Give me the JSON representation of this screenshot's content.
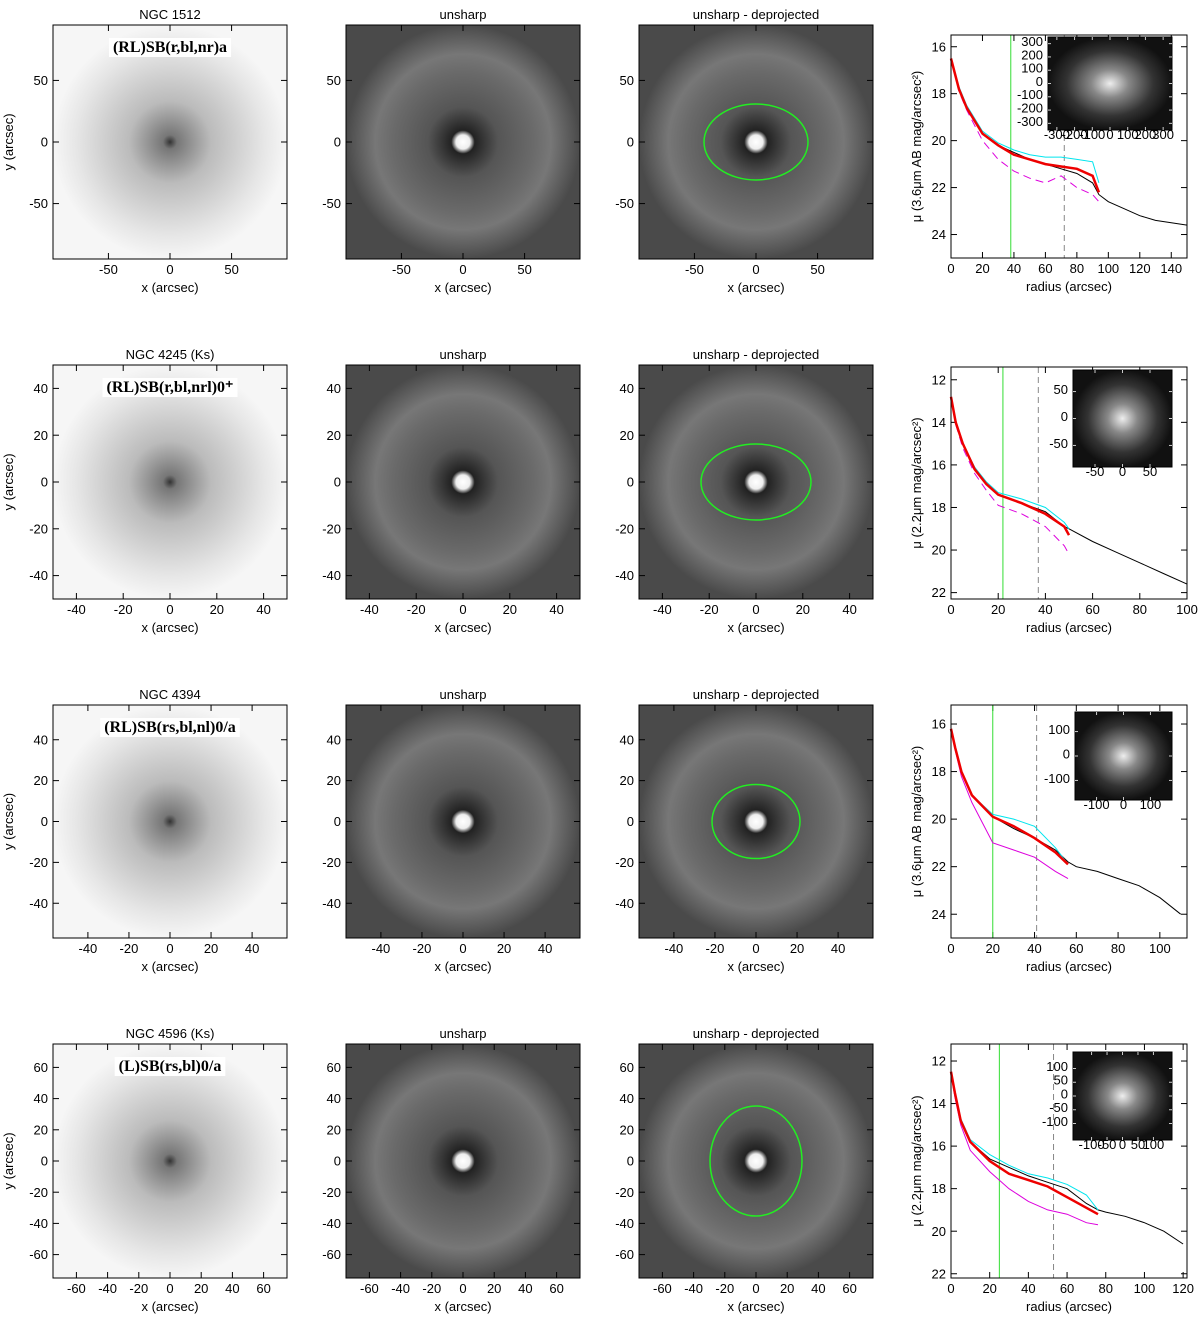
{
  "chart_data": [
    {
      "type": "image",
      "title": "NGC 1512",
      "annotation": "(RL)SB(r,bl,nr)a",
      "xlabel": "x (arcsec)",
      "ylabel": "y (arcsec)",
      "xlim": [
        -95,
        95
      ],
      "ylim": [
        -95,
        95
      ],
      "xticks": [
        -50,
        0,
        50
      ],
      "yticks": [
        -50,
        0,
        50
      ],
      "style": "inverted"
    },
    {
      "type": "image",
      "title": "unsharp",
      "xlabel": "x (arcsec)",
      "xlim": [
        -95,
        95
      ],
      "ylim": [
        -95,
        95
      ],
      "xticks": [
        -50,
        0,
        50
      ],
      "yticks": [
        -50,
        0,
        50
      ],
      "style": "unsharp"
    },
    {
      "type": "image",
      "title": "unsharp - deprojected",
      "xlabel": "x (arcsec)",
      "xlim": [
        -95,
        95
      ],
      "ylim": [
        -95,
        95
      ],
      "xticks": [
        -50,
        0,
        50
      ],
      "yticks": [
        -50,
        0,
        50
      ],
      "style": "unsharp",
      "ellipse_color": "#22ee22"
    },
    {
      "type": "line",
      "xlabel": "radius (arcsec)",
      "ylabel": "μ (3.6μm AB mag/arcsec²)",
      "xlim": [
        0,
        150
      ],
      "ylim": [
        25,
        15.5
      ],
      "xticks": [
        0,
        20,
        40,
        60,
        80,
        100,
        120,
        140
      ],
      "yticks": [
        16,
        18,
        20,
        22,
        24
      ],
      "x": [
        0,
        5,
        10,
        20,
        30,
        40,
        50,
        60,
        70,
        80,
        90,
        94,
        100,
        110,
        120,
        130,
        140,
        150
      ],
      "series": [
        {
          "color": "#000000",
          "values": [
            16.5,
            17.8,
            18.6,
            19.7,
            20.2,
            20.5,
            20.8,
            21.0,
            21.2,
            21.4,
            21.8,
            22.3,
            22.6,
            22.9,
            23.2,
            23.4,
            23.5,
            23.6
          ]
        },
        {
          "color": "#00e5ee",
          "values": [
            16.5,
            17.7,
            18.5,
            19.6,
            20.1,
            20.4,
            20.6,
            20.7,
            20.7,
            20.8,
            20.9,
            21.8,
            null,
            null,
            null,
            null,
            null,
            null
          ]
        },
        {
          "color": "#dd00dd",
          "dash": true,
          "values": [
            16.5,
            17.9,
            18.7,
            20.0,
            20.8,
            21.3,
            21.6,
            21.8,
            21.5,
            22.0,
            22.3,
            22.6,
            null,
            null,
            null,
            null,
            null,
            null
          ]
        },
        {
          "color": "#ee0000",
          "width": 2.5,
          "values": [
            16.5,
            17.8,
            18.6,
            19.7,
            20.2,
            20.6,
            20.8,
            21.0,
            21.1,
            21.2,
            21.5,
            22.2,
            null,
            null,
            null,
            null,
            null,
            null
          ]
        }
      ],
      "vlines": [
        {
          "value": 38,
          "color": "#33dd33"
        },
        {
          "value": 72,
          "color": "#888888",
          "dash": true
        }
      ],
      "inset": {
        "xlim": [
          -350,
          350
        ],
        "ylim": [
          -350,
          350
        ],
        "xticks": [
          -300,
          -200,
          -100,
          0,
          100,
          200,
          300
        ],
        "yticks": [
          -300,
          -200,
          -100,
          0,
          100,
          200,
          300
        ]
      }
    },
    {
      "type": "image",
      "title": "NGC 4245   (Ks)",
      "annotation": "(RL)SB(r,bl,nrl)0⁺",
      "xlabel": "x (arcsec)",
      "ylabel": "y (arcsec)",
      "xlim": [
        -50,
        50
      ],
      "ylim": [
        -50,
        50
      ],
      "xticks": [
        -40,
        -20,
        0,
        20,
        40
      ],
      "yticks": [
        -40,
        -20,
        0,
        20,
        40
      ],
      "style": "inverted"
    },
    {
      "type": "image",
      "title": "unsharp",
      "xlabel": "x (arcsec)",
      "xlim": [
        -50,
        50
      ],
      "ylim": [
        -50,
        50
      ],
      "xticks": [
        -40,
        -20,
        0,
        20,
        40
      ],
      "yticks": [
        -40,
        -20,
        0,
        20,
        40
      ],
      "style": "unsharp"
    },
    {
      "type": "image",
      "title": "unsharp - deprojected",
      "xlabel": "x (arcsec)",
      "xlim": [
        -50,
        50
      ],
      "ylim": [
        -50,
        50
      ],
      "xticks": [
        -40,
        -20,
        0,
        20,
        40
      ],
      "yticks": [
        -40,
        -20,
        0,
        20,
        40
      ],
      "style": "unsharp",
      "ellipse_color": "#22ee22"
    },
    {
      "type": "line",
      "xlabel": "radius (arcsec)",
      "ylabel": "μ (2.2μm mag/arcsec²)",
      "xlim": [
        0,
        100
      ],
      "ylim": [
        22.3,
        11.4
      ],
      "xticks": [
        0,
        20,
        40,
        60,
        80,
        100
      ],
      "yticks": [
        12,
        14,
        16,
        18,
        20,
        22
      ],
      "x": [
        0,
        2,
        5,
        10,
        15,
        20,
        30,
        40,
        48,
        50,
        60,
        70,
        80,
        90,
        100
      ],
      "series": [
        {
          "color": "#000000",
          "values": [
            12.8,
            14.0,
            15.0,
            16.2,
            16.9,
            17.4,
            17.8,
            18.2,
            18.9,
            19.0,
            19.6,
            20.1,
            20.6,
            21.1,
            21.6
          ]
        },
        {
          "color": "#00e5ee",
          "values": [
            12.8,
            14.0,
            15.0,
            16.1,
            16.8,
            17.3,
            17.6,
            18.0,
            18.7,
            19.0,
            null,
            null,
            null,
            null,
            null
          ]
        },
        {
          "color": "#dd00dd",
          "dash": true,
          "values": [
            12.9,
            14.1,
            15.2,
            16.4,
            17.2,
            17.9,
            18.3,
            18.9,
            19.8,
            20.2,
            null,
            null,
            null,
            null,
            null
          ]
        },
        {
          "color": "#ee0000",
          "width": 2.5,
          "values": [
            12.8,
            14.0,
            15.0,
            16.2,
            16.9,
            17.4,
            17.8,
            18.3,
            18.9,
            19.3,
            null,
            null,
            null,
            null,
            null
          ]
        }
      ],
      "vlines": [
        {
          "value": 22,
          "color": "#33dd33"
        },
        {
          "value": 37,
          "color": "#888888",
          "dash": true
        }
      ],
      "inset": {
        "xlim": [
          -90,
          90
        ],
        "ylim": [
          -90,
          90
        ],
        "xticks": [
          -50,
          0,
          50
        ],
        "yticks": [
          -50,
          0,
          50
        ]
      }
    },
    {
      "type": "image",
      "title": "NGC 4394",
      "annotation": "(RL)SB(rs,bl,nl)0/a",
      "xlabel": "x (arcsec)",
      "ylabel": "y (arcsec)",
      "xlim": [
        -57,
        57
      ],
      "ylim": [
        -57,
        57
      ],
      "xticks": [
        -40,
        -20,
        0,
        20,
        40
      ],
      "yticks": [
        -40,
        -20,
        0,
        20,
        40
      ],
      "style": "inverted"
    },
    {
      "type": "image",
      "title": "unsharp",
      "xlabel": "x (arcsec)",
      "xlim": [
        -57,
        57
      ],
      "ylim": [
        -57,
        57
      ],
      "xticks": [
        -40,
        -20,
        0,
        20,
        40
      ],
      "yticks": [
        -40,
        -20,
        0,
        20,
        40
      ],
      "style": "unsharp"
    },
    {
      "type": "image",
      "title": "unsharp - deprojected",
      "xlabel": "x (arcsec)",
      "xlim": [
        -57,
        57
      ],
      "ylim": [
        -57,
        57
      ],
      "xticks": [
        -40,
        -20,
        0,
        20,
        40
      ],
      "yticks": [
        -40,
        -20,
        0,
        20,
        40
      ],
      "style": "unsharp",
      "ellipse_color": "#22ee22"
    },
    {
      "type": "line",
      "xlabel": "radius (arcsec)",
      "ylabel": "μ (3.6μm AB mag/arcsec²)",
      "xlim": [
        0,
        113
      ],
      "ylim": [
        25,
        15.2
      ],
      "xticks": [
        0,
        20,
        40,
        60,
        80,
        100
      ],
      "yticks": [
        16,
        18,
        20,
        22,
        24
      ],
      "x": [
        0,
        2,
        5,
        10,
        20,
        30,
        40,
        50,
        56,
        60,
        70,
        80,
        90,
        100,
        110
      ],
      "series": [
        {
          "color": "#000000",
          "values": [
            16.2,
            17.0,
            18.0,
            19.0,
            19.9,
            20.4,
            20.8,
            21.3,
            21.8,
            22.0,
            22.2,
            22.5,
            22.8,
            23.3,
            24.0
          ]
        },
        {
          "color": "#00e5ee",
          "values": [
            16.2,
            17.0,
            18.0,
            19.0,
            19.8,
            20.0,
            20.3,
            21.2,
            21.9,
            null,
            null,
            null,
            null,
            null,
            null
          ]
        },
        {
          "color": "#dd00dd",
          "values": [
            16.2,
            17.1,
            18.2,
            19.3,
            21.0,
            21.3,
            21.6,
            22.2,
            22.5,
            null,
            null,
            null,
            null,
            null,
            null
          ]
        },
        {
          "color": "#ee0000",
          "width": 2.5,
          "values": [
            16.2,
            17.0,
            18.0,
            19.0,
            19.9,
            20.3,
            20.8,
            21.4,
            21.9,
            null,
            null,
            null,
            null,
            null,
            null
          ]
        }
      ],
      "vlines": [
        {
          "value": 20,
          "color": "#33dd33"
        },
        {
          "value": 41,
          "color": "#888888",
          "dash": true
        }
      ],
      "inset": {
        "xlim": [
          -180,
          180
        ],
        "ylim": [
          -180,
          180
        ],
        "xticks": [
          -100,
          0,
          100
        ],
        "yticks": [
          -100,
          0,
          100
        ]
      }
    },
    {
      "type": "image",
      "title": "NGC 4596   (Ks)",
      "annotation": "(L)SB(rs,bl)0/a",
      "xlabel": "x (arcsec)",
      "ylabel": "y (arcsec)",
      "xlim": [
        -75,
        75
      ],
      "ylim": [
        -75,
        75
      ],
      "xticks": [
        -60,
        -40,
        -20,
        0,
        20,
        40,
        60
      ],
      "yticks": [
        -60,
        -40,
        -20,
        0,
        20,
        40,
        60
      ],
      "style": "inverted"
    },
    {
      "type": "image",
      "title": "unsharp",
      "xlabel": "x (arcsec)",
      "xlim": [
        -75,
        75
      ],
      "ylim": [
        -75,
        75
      ],
      "xticks": [
        -60,
        -40,
        -20,
        0,
        20,
        40,
        60
      ],
      "yticks": [
        -60,
        -40,
        -20,
        0,
        20,
        40,
        60
      ],
      "style": "unsharp"
    },
    {
      "type": "image",
      "title": "unsharp - deprojected",
      "xlabel": "x (arcsec)",
      "xlim": [
        -75,
        75
      ],
      "ylim": [
        -75,
        75
      ],
      "xticks": [
        -60,
        -40,
        -20,
        0,
        20,
        40,
        60
      ],
      "yticks": [
        -60,
        -40,
        -20,
        0,
        20,
        40,
        60
      ],
      "style": "unsharp",
      "ellipse_color": "#22ee22"
    },
    {
      "type": "line",
      "xlabel": "radius (arcsec)",
      "ylabel": "μ (2.2μm mag/arcsec²)",
      "xlim": [
        0,
        122
      ],
      "ylim": [
        22.2,
        11.2
      ],
      "xticks": [
        0,
        20,
        40,
        60,
        80,
        100,
        120
      ],
      "yticks": [
        12,
        14,
        16,
        18,
        20,
        22
      ],
      "x": [
        0,
        2,
        5,
        10,
        20,
        30,
        40,
        50,
        60,
        70,
        76,
        80,
        90,
        100,
        110,
        120
      ],
      "series": [
        {
          "color": "#000000",
          "values": [
            12.5,
            13.5,
            14.8,
            15.8,
            16.6,
            17.0,
            17.4,
            17.7,
            18.0,
            18.7,
            19.0,
            19.1,
            19.3,
            19.6,
            20.0,
            20.6
          ]
        },
        {
          "color": "#00e5ee",
          "values": [
            12.5,
            13.5,
            14.7,
            15.7,
            16.4,
            16.9,
            17.3,
            17.5,
            17.8,
            18.3,
            19.0,
            null,
            null,
            null,
            null,
            null
          ]
        },
        {
          "color": "#dd00dd",
          "values": [
            12.6,
            13.7,
            15.0,
            16.2,
            17.2,
            18.0,
            18.6,
            19.0,
            19.2,
            19.6,
            19.7,
            null,
            null,
            null,
            null,
            null
          ]
        },
        {
          "color": "#ee0000",
          "width": 2.5,
          "values": [
            12.5,
            13.5,
            14.8,
            15.8,
            16.7,
            17.3,
            17.6,
            17.9,
            18.4,
            18.9,
            19.2,
            null,
            null,
            null,
            null,
            null
          ]
        }
      ],
      "vlines": [
        {
          "value": 25,
          "color": "#33dd33"
        },
        {
          "value": 53,
          "color": "#888888",
          "dash": true
        }
      ],
      "inset": {
        "xlim": [
          -160,
          160
        ],
        "ylim": [
          -160,
          160
        ],
        "xticks": [
          -100,
          -50,
          0,
          50,
          100
        ],
        "yticks": [
          -100,
          -50,
          0,
          50,
          100
        ]
      }
    }
  ]
}
